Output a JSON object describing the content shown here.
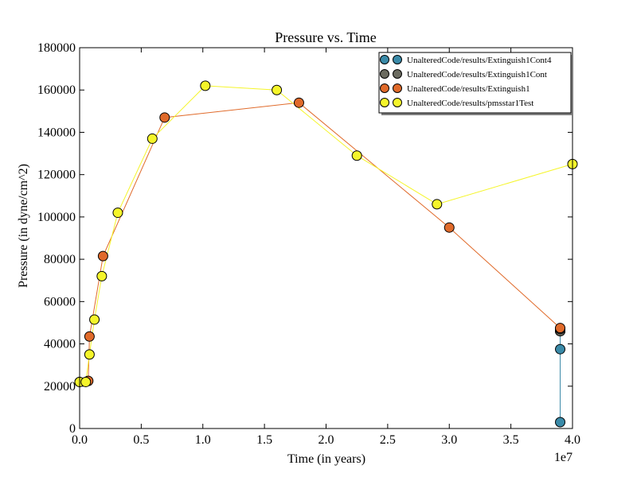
{
  "chart_data": {
    "type": "line",
    "title": "Pressure vs. Time",
    "xlabel": "Time (in years)",
    "ylabel": "Pressure (in dyne/cm^2)",
    "x_offset_label": "1e7",
    "xlim": [
      0.0,
      4.0
    ],
    "ylim": [
      0,
      180000
    ],
    "x_ticks": [
      0.0,
      0.5,
      1.0,
      1.5,
      2.0,
      2.5,
      3.0,
      3.5,
      4.0
    ],
    "x_tick_labels": [
      "0.0",
      "0.5",
      "1.0",
      "1.5",
      "2.0",
      "2.5",
      "3.0",
      "3.5",
      "4.0"
    ],
    "y_ticks": [
      0,
      20000,
      40000,
      60000,
      80000,
      100000,
      120000,
      140000,
      160000,
      180000
    ],
    "y_tick_labels": [
      "0",
      "20000",
      "40000",
      "60000",
      "80000",
      "100000",
      "120000",
      "140000",
      "160000",
      "180000"
    ],
    "x_scale_note": "x values in units of 1e7 years",
    "grid": false,
    "legend_position": "top-right",
    "series": [
      {
        "name": "UnalteredCode/results/Extinguish1Cont4",
        "color": "#3a8aa8",
        "x": [
          3.9,
          3.9,
          3.9
        ],
        "y": [
          3000,
          37500,
          46000
        ]
      },
      {
        "name": "UnalteredCode/results/Extinguish1Cont",
        "color": "#6b6b60",
        "x": [
          3.9,
          3.9
        ],
        "y": [
          46000,
          47000
        ]
      },
      {
        "name": "UnalteredCode/results/Extinguish1",
        "color": "#e06a2a",
        "x": [
          0.0,
          0.07,
          0.08,
          0.19,
          0.69,
          1.78,
          3.0,
          3.9
        ],
        "y": [
          22000,
          22500,
          43500,
          81500,
          147000,
          154000,
          95000,
          47500
        ]
      },
      {
        "name": "UnalteredCode/results/pmsstar1Test",
        "color": "#f5f52a",
        "x": [
          0.0,
          0.05,
          0.08,
          0.12,
          0.18,
          0.31,
          0.59,
          1.02,
          1.6,
          2.25,
          2.9,
          4.0
        ],
        "y": [
          22000,
          22000,
          35000,
          51500,
          72000,
          102000,
          137000,
          162000,
          160000,
          129000,
          106000,
          125000
        ]
      }
    ]
  }
}
